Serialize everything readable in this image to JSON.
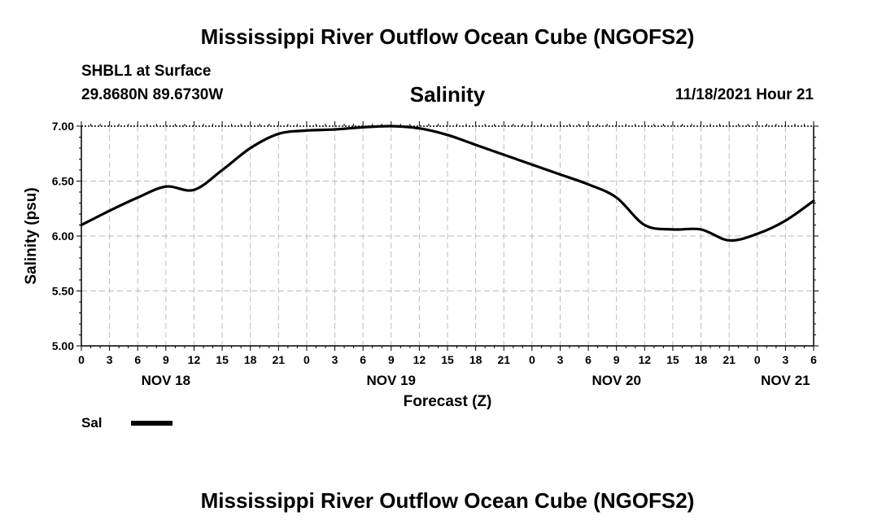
{
  "header": {
    "title": "Mississippi River Outflow Ocean Cube (NGOFS2)",
    "station": "SHBL1 at Surface",
    "coords": "29.8680N  89.6730W",
    "variable": "Salinity",
    "timestamp": "11/18/2021 Hour 21"
  },
  "footer": {
    "title": "Mississippi River Outflow Ocean Cube (NGOFS2)"
  },
  "legend": {
    "label": "Sal",
    "color": "#000000"
  },
  "chart_data": {
    "type": "line",
    "title": "Salinity",
    "xlabel": "Forecast (Z)",
    "ylabel": "Salinity (psu)",
    "ylim": [
      5.0,
      7.0
    ],
    "yticks": [
      5.0,
      5.5,
      6.0,
      6.5,
      7.0
    ],
    "ytick_labels": [
      "5.00",
      "5.50",
      "6.00",
      "6.50",
      "7.00"
    ],
    "xlim": [
      0,
      78
    ],
    "xticks": [
      0,
      3,
      6,
      9,
      12,
      15,
      18,
      21,
      24,
      27,
      30,
      33,
      36,
      39,
      42,
      45,
      48,
      51,
      54,
      57,
      60,
      63,
      66,
      69,
      72,
      75,
      78
    ],
    "xtick_labels": [
      "0",
      "3",
      "6",
      "9",
      "12",
      "15",
      "18",
      "21",
      "0",
      "3",
      "6",
      "9",
      "12",
      "15",
      "18",
      "21",
      "0",
      "3",
      "6",
      "9",
      "12",
      "15",
      "18",
      "21",
      "0",
      "3",
      "6"
    ],
    "date_labels": [
      {
        "x": 9,
        "label": "NOV 18"
      },
      {
        "x": 33,
        "label": "NOV 19"
      },
      {
        "x": 57,
        "label": "NOV 20"
      },
      {
        "x": 75,
        "label": "NOV 21"
      }
    ],
    "grid": true,
    "series": [
      {
        "name": "Sal",
        "color": "#000000",
        "x": [
          0,
          3,
          6,
          9,
          12,
          15,
          18,
          21,
          24,
          27,
          30,
          33,
          36,
          39,
          42,
          45,
          48,
          51,
          54,
          57,
          60,
          63,
          66,
          69,
          72,
          75,
          78
        ],
        "y": [
          6.1,
          6.23,
          6.35,
          6.45,
          6.42,
          6.6,
          6.8,
          6.93,
          6.96,
          6.97,
          6.99,
          7.0,
          6.98,
          6.92,
          6.83,
          6.74,
          6.65,
          6.56,
          6.47,
          6.35,
          6.1,
          6.06,
          6.06,
          5.96,
          6.02,
          6.14,
          6.32
        ]
      }
    ]
  }
}
